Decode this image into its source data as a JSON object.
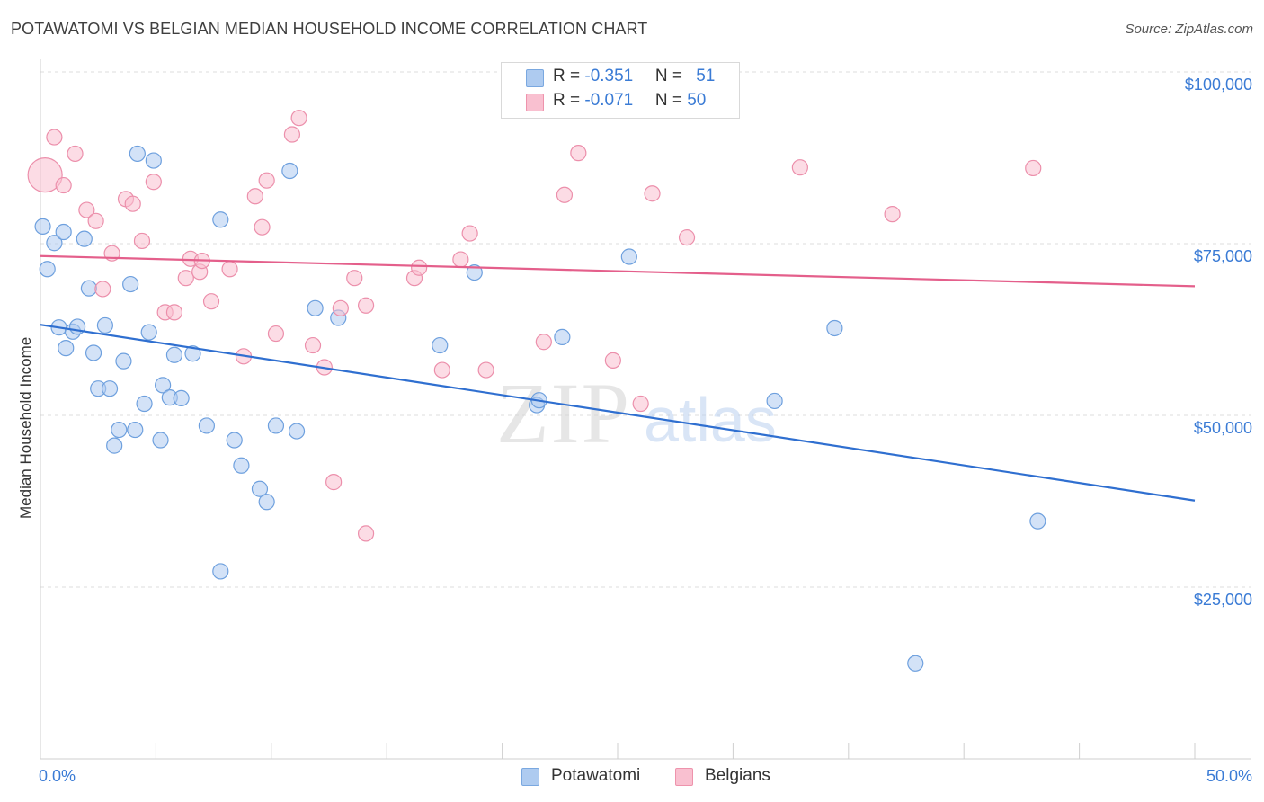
{
  "title": "POTAWATOMI VS BELGIAN MEDIAN HOUSEHOLD INCOME CORRELATION CHART",
  "source": "Source: ZipAtlas.com",
  "watermark": {
    "zip": "ZIP",
    "atlas": "atlas"
  },
  "legend": {
    "rows": [
      {
        "r_label": "R = ",
        "r_value": "-0.351",
        "n_label": "N = ",
        "n_value": "51",
        "color": "#aecbf0",
        "stroke": "#7aa8e0"
      },
      {
        "r_label": "R = ",
        "r_value": "-0.071",
        "n_label": "N = ",
        "n_value": "50",
        "color": "#f9c0d0",
        "stroke": "#ee93ac"
      }
    ]
  },
  "bottom_legend": [
    "Potawatomi",
    "Belgians"
  ],
  "chart_data": {
    "type": "scatter",
    "ylabel": "Median Household Income",
    "xlim": [
      0,
      50
    ],
    "ylim": [
      0,
      105000
    ],
    "x_tick_labels": [
      "0.0%",
      "50.0%"
    ],
    "y_ticks": [
      {
        "value": 100000,
        "label": "$100,000"
      },
      {
        "value": 75000,
        "label": "$75,000"
      },
      {
        "value": 50000,
        "label": "$50,000"
      },
      {
        "value": 25000,
        "label": "$25,000"
      }
    ],
    "series": [
      {
        "name": "Potawatomi",
        "color": "#aecbf0",
        "stroke": "#6ea0de",
        "line_color": "#2f6fd0",
        "trend": [
          [
            0.0,
            63200
          ],
          [
            50.0,
            37600
          ]
        ],
        "points": [
          [
            0.1,
            77500
          ],
          [
            0.3,
            71300
          ],
          [
            0.6,
            75100
          ],
          [
            0.8,
            62800
          ],
          [
            1.0,
            76700
          ],
          [
            1.1,
            59800
          ],
          [
            1.4,
            62200
          ],
          [
            1.6,
            62900
          ],
          [
            1.9,
            75700
          ],
          [
            2.1,
            68500
          ],
          [
            2.3,
            59100
          ],
          [
            2.5,
            53900
          ],
          [
            2.8,
            63100
          ],
          [
            3.0,
            53900
          ],
          [
            3.2,
            45600
          ],
          [
            3.4,
            47900
          ],
          [
            3.6,
            57900
          ],
          [
            3.9,
            69100
          ],
          [
            4.2,
            88100
          ],
          [
            4.1,
            47900
          ],
          [
            4.5,
            51700
          ],
          [
            4.7,
            62100
          ],
          [
            4.9,
            87100
          ],
          [
            5.2,
            46400
          ],
          [
            5.3,
            54400
          ],
          [
            5.6,
            52600
          ],
          [
            5.8,
            58800
          ],
          [
            6.1,
            52500
          ],
          [
            6.6,
            59000
          ],
          [
            7.2,
            48500
          ],
          [
            7.8,
            78500
          ],
          [
            7.8,
            27300
          ],
          [
            8.4,
            46400
          ],
          [
            8.7,
            42700
          ],
          [
            9.5,
            39300
          ],
          [
            9.8,
            37400
          ],
          [
            10.2,
            48500
          ],
          [
            10.8,
            85600
          ],
          [
            11.1,
            47700
          ],
          [
            11.9,
            65600
          ],
          [
            12.9,
            64200
          ],
          [
            17.3,
            60200
          ],
          [
            18.8,
            70800
          ],
          [
            21.5,
            51500
          ],
          [
            21.6,
            52200
          ],
          [
            22.6,
            61400
          ],
          [
            25.5,
            73100
          ],
          [
            31.8,
            52100
          ],
          [
            34.4,
            62700
          ],
          [
            37.9,
            13900
          ],
          [
            43.2,
            34600
          ]
        ]
      },
      {
        "name": "Belgians",
        "color": "#f9c0d0",
        "stroke": "#ec8fab",
        "line_color": "#e45f8b",
        "trend": [
          [
            0.0,
            73200
          ],
          [
            50.0,
            68800
          ]
        ],
        "points": [
          [
            0.2,
            85000
          ],
          [
            0.6,
            90500
          ],
          [
            1.0,
            83500
          ],
          [
            1.5,
            88100
          ],
          [
            2.0,
            79900
          ],
          [
            2.4,
            78300
          ],
          [
            2.7,
            68400
          ],
          [
            3.1,
            73600
          ],
          [
            3.7,
            81500
          ],
          [
            4.0,
            80800
          ],
          [
            4.4,
            75400
          ],
          [
            4.9,
            84000
          ],
          [
            5.4,
            65000
          ],
          [
            5.8,
            65000
          ],
          [
            6.3,
            70000
          ],
          [
            6.5,
            72800
          ],
          [
            6.9,
            70900
          ],
          [
            7.0,
            72500
          ],
          [
            7.4,
            66600
          ],
          [
            8.2,
            71300
          ],
          [
            8.8,
            58600
          ],
          [
            9.3,
            81900
          ],
          [
            9.6,
            77400
          ],
          [
            9.8,
            84200
          ],
          [
            10.2,
            61900
          ],
          [
            10.9,
            90900
          ],
          [
            11.2,
            93300
          ],
          [
            11.8,
            60200
          ],
          [
            12.3,
            57000
          ],
          [
            12.7,
            40300
          ],
          [
            13.0,
            65600
          ],
          [
            13.6,
            70000
          ],
          [
            14.1,
            66000
          ],
          [
            14.1,
            32800
          ],
          [
            16.2,
            70000
          ],
          [
            16.4,
            71500
          ],
          [
            17.4,
            56600
          ],
          [
            18.2,
            72700
          ],
          [
            18.6,
            76500
          ],
          [
            19.3,
            56600
          ],
          [
            21.8,
            60700
          ],
          [
            22.7,
            82100
          ],
          [
            23.3,
            88200
          ],
          [
            24.8,
            58000
          ],
          [
            26.0,
            51700
          ],
          [
            26.5,
            82300
          ],
          [
            28.0,
            75900
          ],
          [
            32.9,
            86100
          ],
          [
            36.9,
            79300
          ],
          [
            43.0,
            86000
          ]
        ]
      }
    ]
  }
}
